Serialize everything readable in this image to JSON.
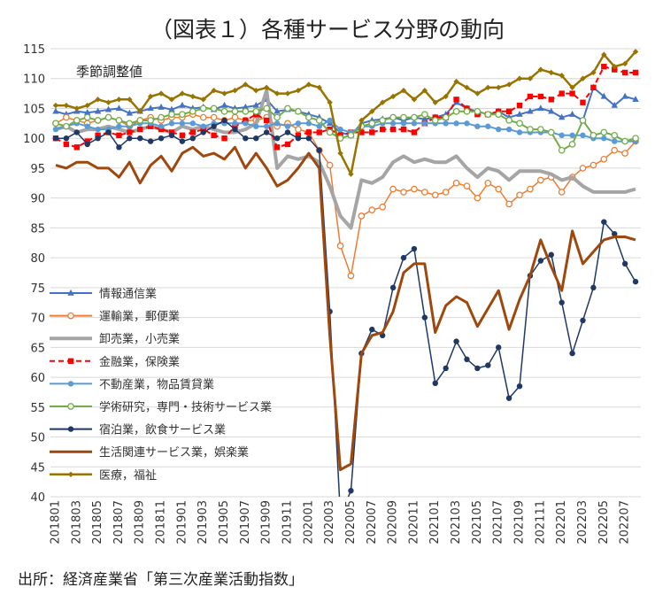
{
  "title": "（図表１）各種サービス分野の動向",
  "unit_note": "季節調整値",
  "source": "出所：経済産業省「第三次産業活動指数」",
  "chart_data": {
    "type": "line",
    "title": "（図表１）各種サービス分野の動向",
    "ylim": [
      40,
      115
    ],
    "yticks": [
      40,
      45,
      50,
      55,
      60,
      65,
      70,
      75,
      80,
      85,
      90,
      95,
      100,
      105,
      110,
      115
    ],
    "grid": "horizontal",
    "legend_position": "left",
    "x_tick_labels": [
      "201801",
      "201803",
      "201805",
      "201807",
      "201809",
      "201811",
      "201901",
      "201903",
      "201905",
      "201907",
      "201909",
      "201911",
      "202001",
      "202003",
      "202005",
      "202007",
      "202009",
      "202011",
      "202101",
      "202103",
      "202105",
      "202107",
      "202109",
      "202111",
      "202201",
      "202203",
      "202205",
      "202207"
    ],
    "x": [
      "201801",
      "201802",
      "201803",
      "201804",
      "201805",
      "201806",
      "201807",
      "201808",
      "201809",
      "201810",
      "201811",
      "201812",
      "201901",
      "201902",
      "201903",
      "201904",
      "201905",
      "201906",
      "201907",
      "201908",
      "201909",
      "201910",
      "201911",
      "201912",
      "202001",
      "202002",
      "202003",
      "202004",
      "202005",
      "202006",
      "202007",
      "202008",
      "202009",
      "202010",
      "202011",
      "202012",
      "202101",
      "202102",
      "202103",
      "202104",
      "202105",
      "202106",
      "202107",
      "202108",
      "202109",
      "202110",
      "202111",
      "202112",
      "202201",
      "202202",
      "202203",
      "202204",
      "202205",
      "202206",
      "202207",
      "202208"
    ],
    "series": [
      {
        "name": "情報通信業",
        "color": "#4472C4",
        "marker": "triangle",
        "width": 2,
        "values": [
          104.5,
          104.0,
          104.5,
          104.3,
          104.5,
          104.8,
          105.0,
          104.2,
          104.5,
          105.0,
          105.2,
          104.8,
          105.5,
          105.0,
          105.2,
          104.8,
          105.5,
          105.0,
          105.2,
          105.5,
          106.5,
          104.5,
          104.8,
          104.5,
          104.0,
          103.5,
          102.5,
          101.0,
          100.5,
          102.5,
          103.0,
          103.2,
          103.5,
          103.0,
          103.5,
          103.2,
          103.5,
          104.0,
          106.0,
          105.0,
          104.5,
          104.0,
          104.5,
          103.5,
          104.0,
          104.5,
          105.0,
          104.5,
          103.5,
          104.0,
          103.0,
          108.5,
          107.0,
          105.5,
          107.0,
          106.5
        ]
      },
      {
        "name": "運輸業，郵便業",
        "color": "#ED7D31",
        "marker": "circle-open",
        "width": 1.5,
        "values": [
          102.5,
          103.5,
          103.0,
          102.5,
          103.0,
          103.5,
          103.0,
          102.0,
          103.0,
          103.5,
          103.0,
          103.5,
          103.5,
          104.0,
          103.5,
          103.5,
          103.0,
          103.5,
          103.0,
          103.0,
          103.5,
          102.0,
          102.5,
          101.5,
          101.0,
          98.0,
          95.5,
          82.0,
          77.0,
          87.0,
          88.0,
          88.5,
          91.5,
          91.0,
          91.5,
          91.0,
          90.5,
          91.0,
          92.5,
          92.0,
          90.0,
          92.5,
          91.5,
          89.0,
          90.5,
          91.5,
          93.0,
          93.5,
          91.0,
          93.5,
          95.0,
          95.5,
          96.5,
          98.0,
          97.5,
          99.5
        ]
      },
      {
        "name": "卸売業，小売業",
        "color": "#A5A5A5",
        "marker": "none",
        "width": 4,
        "values": [
          101.5,
          102.0,
          101.0,
          101.5,
          101.5,
          102.0,
          101.5,
          101.0,
          101.5,
          102.0,
          101.5,
          101.0,
          102.0,
          101.5,
          102.0,
          101.5,
          101.0,
          101.0,
          101.5,
          102.5,
          108.0,
          95.0,
          97.0,
          96.5,
          97.0,
          96.0,
          92.0,
          87.0,
          85.0,
          93.0,
          92.5,
          93.5,
          96.0,
          97.0,
          96.0,
          96.5,
          96.0,
          96.0,
          97.0,
          95.0,
          93.5,
          95.0,
          94.5,
          93.0,
          94.5,
          94.5,
          94.5,
          94.0,
          93.0,
          93.5,
          92.0,
          91.0,
          91.0,
          91.0,
          91.0,
          91.5
        ]
      },
      {
        "name": "金融業，保険業",
        "color": "#FF0000",
        "marker": "square",
        "width": 2,
        "dash": "6,4",
        "values": [
          100.0,
          99.0,
          98.5,
          99.5,
          100.5,
          101.0,
          100.5,
          101.0,
          101.5,
          102.0,
          101.5,
          101.0,
          100.5,
          101.0,
          101.5,
          100.5,
          100.0,
          102.0,
          103.0,
          104.0,
          103.0,
          98.5,
          99.0,
          100.5,
          101.0,
          101.0,
          101.5,
          100.5,
          101.0,
          101.0,
          101.0,
          101.5,
          101.5,
          101.5,
          101.0,
          102.5,
          103.5,
          103.5,
          106.5,
          105.0,
          104.0,
          104.0,
          104.5,
          104.5,
          105.5,
          107.0,
          107.0,
          106.5,
          107.5,
          107.5,
          106.0,
          108.5,
          112.0,
          111.5,
          111.0,
          111.0
        ]
      },
      {
        "name": "不動産業，物品賃貸業",
        "color": "#5B9BD5",
        "marker": "circle",
        "width": 2,
        "values": [
          101.5,
          102.0,
          102.5,
          102.0,
          101.5,
          101.5,
          102.0,
          102.0,
          102.5,
          102.5,
          102.0,
          102.5,
          102.5,
          102.5,
          102.0,
          102.5,
          102.5,
          102.5,
          102.5,
          102.0,
          102.0,
          102.5,
          102.0,
          102.5,
          102.5,
          102.0,
          103.0,
          101.5,
          101.0,
          102.0,
          102.0,
          102.5,
          102.5,
          102.5,
          102.5,
          102.5,
          102.5,
          102.5,
          102.5,
          102.5,
          102.0,
          102.0,
          101.5,
          101.5,
          101.0,
          101.0,
          101.0,
          101.0,
          100.5,
          100.5,
          100.5,
          100.0,
          100.0,
          99.5,
          99.5,
          99.5
        ]
      },
      {
        "name": "学術研究，専門・技術サービス業",
        "color": "#70AD47",
        "marker": "circle-open",
        "width": 2,
        "values": [
          102.5,
          102.0,
          103.0,
          103.5,
          103.0,
          103.5,
          103.0,
          102.5,
          103.0,
          103.0,
          103.5,
          104.0,
          104.0,
          104.5,
          105.0,
          105.0,
          104.5,
          104.5,
          104.5,
          104.5,
          105.0,
          103.5,
          105.0,
          104.5,
          103.5,
          103.0,
          101.0,
          100.0,
          100.5,
          102.0,
          102.5,
          103.0,
          103.5,
          103.5,
          103.5,
          104.0,
          103.0,
          103.5,
          104.5,
          104.5,
          104.5,
          104.0,
          104.0,
          103.0,
          102.5,
          101.5,
          101.5,
          101.0,
          98.0,
          99.0,
          103.0,
          100.5,
          101.0,
          100.5,
          99.5,
          100.0
        ]
      },
      {
        "name": "宿泊業，飲食サービス業",
        "color": "#1F3864",
        "marker": "circle",
        "width": 1.5,
        "values": [
          100.0,
          100.0,
          101.0,
          99.0,
          100.0,
          101.0,
          98.5,
          100.0,
          100.0,
          99.5,
          100.0,
          100.5,
          99.5,
          100.0,
          101.0,
          102.0,
          103.0,
          101.5,
          100.0,
          100.0,
          101.0,
          100.0,
          101.0,
          100.0,
          100.0,
          98.0,
          71.0,
          37.0,
          41.0,
          64.0,
          68.0,
          67.0,
          75.0,
          80.0,
          81.5,
          70.0,
          59.0,
          61.5,
          66.0,
          63.0,
          61.5,
          62.0,
          65.0,
          56.5,
          58.5,
          77.0,
          79.5,
          80.5,
          72.5,
          64.0,
          69.5,
          75.0,
          86.0,
          84.0,
          79.0,
          76.0
        ]
      },
      {
        "name": "生活関連サービス業，娯楽業",
        "color": "#9E480E",
        "marker": "none",
        "width": 3,
        "values": [
          95.5,
          95.0,
          96.0,
          96.0,
          95.0,
          95.0,
          93.5,
          96.0,
          92.5,
          95.5,
          97.0,
          94.5,
          97.5,
          98.5,
          97.0,
          97.5,
          96.5,
          98.5,
          95.0,
          97.5,
          95.0,
          92.0,
          93.0,
          95.0,
          97.5,
          95.0,
          67.0,
          44.5,
          45.5,
          64.0,
          67.0,
          67.5,
          71.0,
          77.5,
          79.0,
          79.0,
          67.5,
          72.0,
          73.5,
          72.5,
          68.5,
          71.5,
          74.5,
          68.0,
          73.0,
          77.0,
          83.0,
          78.5,
          74.5,
          84.5,
          79.0,
          81.0,
          83.0,
          83.5,
          83.5,
          83.0
        ]
      },
      {
        "name": "医療，福祉",
        "color": "#997300",
        "marker": "diamond",
        "width": 2.5,
        "values": [
          105.5,
          105.5,
          105.0,
          105.5,
          106.5,
          106.0,
          106.5,
          106.5,
          104.5,
          107.0,
          107.5,
          106.5,
          107.5,
          107.0,
          106.5,
          108.0,
          107.5,
          108.0,
          109.0,
          108.0,
          108.5,
          107.5,
          107.5,
          108.0,
          109.0,
          108.5,
          106.0,
          97.5,
          94.0,
          103.0,
          104.5,
          106.0,
          107.0,
          108.0,
          106.5,
          108.0,
          106.0,
          107.0,
          109.5,
          108.5,
          107.5,
          108.5,
          108.5,
          109.0,
          110.0,
          110.0,
          111.5,
          111.0,
          110.5,
          108.5,
          110.0,
          111.0,
          114.0,
          112.0,
          112.5,
          114.5
        ]
      }
    ]
  }
}
